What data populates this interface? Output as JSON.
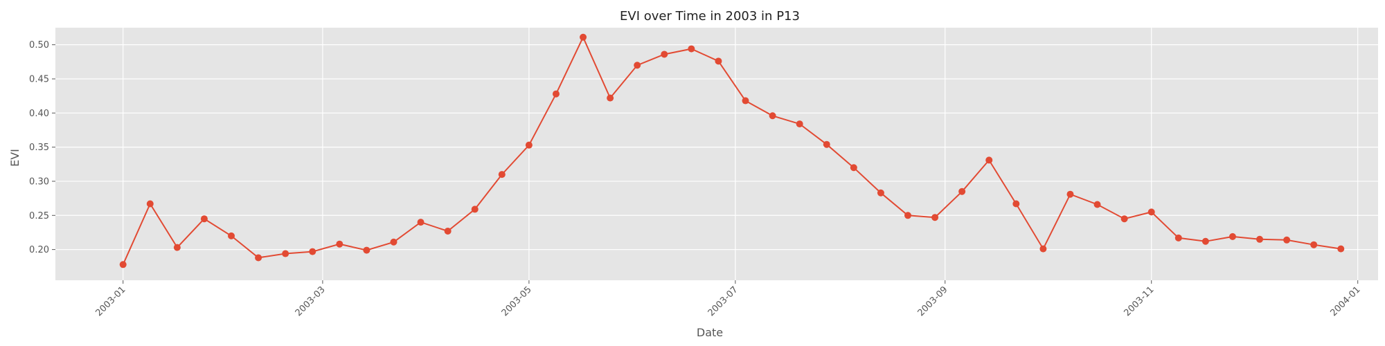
{
  "chart_data": {
    "type": "line",
    "title": "EVI over Time in 2003 in P13",
    "xlabel": "Date",
    "ylabel": "EVI",
    "grid": true,
    "legend": "none",
    "colors": {
      "background": "#e5e5e5",
      "grid": "#ffffff",
      "line": "#e24a33"
    },
    "xlim": [
      "2002-12-12",
      "2004-01-07"
    ],
    "ylim": [
      0.155,
      0.525
    ],
    "x_ticks": [
      "2003-01-01",
      "2003-03-01",
      "2003-05-01",
      "2003-07-01",
      "2003-09-01",
      "2003-11-01",
      "2004-01-01"
    ],
    "x_tick_labels": [
      "2003-01",
      "2003-03",
      "2003-05",
      "2003-07",
      "2003-09",
      "2003-11",
      "2004-01"
    ],
    "y_ticks": [
      0.2,
      0.25,
      0.3,
      0.35,
      0.4,
      0.45,
      0.5
    ],
    "y_tick_labels": [
      "0.20",
      "0.25",
      "0.30",
      "0.35",
      "0.40",
      "0.45",
      "0.50"
    ],
    "series": [
      {
        "x": [
          "2003-01-01",
          "2003-01-09",
          "2003-01-17",
          "2003-01-25",
          "2003-02-02",
          "2003-02-10",
          "2003-02-18",
          "2003-02-26",
          "2003-03-06",
          "2003-03-14",
          "2003-03-22",
          "2003-03-30",
          "2003-04-07",
          "2003-04-15",
          "2003-04-23",
          "2003-05-01",
          "2003-05-09",
          "2003-05-17",
          "2003-05-25",
          "2003-06-02",
          "2003-06-10",
          "2003-06-18",
          "2003-06-26",
          "2003-07-04",
          "2003-07-12",
          "2003-07-20",
          "2003-07-28",
          "2003-08-05",
          "2003-08-13",
          "2003-08-21",
          "2003-08-29",
          "2003-09-06",
          "2003-09-14",
          "2003-09-22",
          "2003-09-30",
          "2003-10-08",
          "2003-10-16",
          "2003-10-24",
          "2003-11-01",
          "2003-11-09",
          "2003-11-17",
          "2003-11-25",
          "2003-12-03",
          "2003-12-11",
          "2003-12-19",
          "2003-12-27"
        ],
        "y": [
          0.178,
          0.267,
          0.203,
          0.245,
          0.22,
          0.188,
          0.194,
          0.197,
          0.208,
          0.199,
          0.211,
          0.24,
          0.227,
          0.259,
          0.31,
          0.353,
          0.428,
          0.511,
          0.422,
          0.47,
          0.486,
          0.494,
          0.476,
          0.418,
          0.396,
          0.384,
          0.354,
          0.32,
          0.283,
          0.25,
          0.247,
          0.285,
          0.331,
          0.267,
          0.201,
          0.281,
          0.266,
          0.245,
          0.255,
          0.217,
          0.212,
          0.219,
          0.215,
          0.214,
          0.207,
          0.201
        ]
      }
    ]
  }
}
